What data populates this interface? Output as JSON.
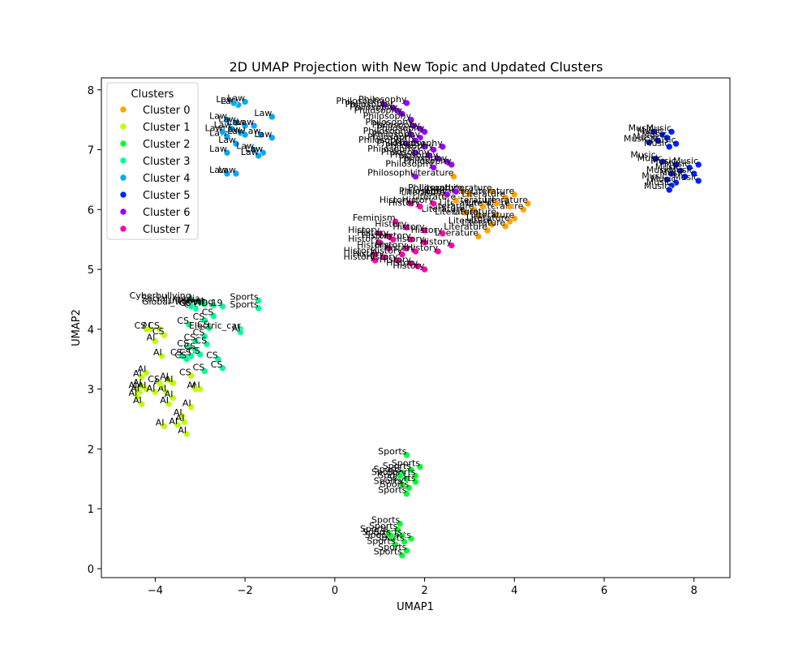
{
  "chart_data": {
    "type": "scatter",
    "title": "2D UMAP Projection with New Topic and Updated Clusters",
    "xlabel": "UMAP1",
    "ylabel": "UMAP2",
    "xlim": [
      -5.2,
      8.8
    ],
    "ylim": [
      -0.15,
      8.2
    ],
    "xticks": [
      -4,
      -2,
      0,
      2,
      4,
      6,
      8
    ],
    "yticks": [
      0,
      1,
      2,
      3,
      4,
      5,
      6,
      7,
      8
    ],
    "grid": false,
    "legend": {
      "title": "Clusters",
      "placement": "top-left"
    },
    "series": [
      {
        "name": "Cluster 0",
        "color": "#ffa500",
        "points": [
          [
            2.45,
            6.23,
            "Literature"
          ],
          [
            2.85,
            6.3,
            "Literature"
          ],
          [
            3.0,
            6.25,
            "Literature"
          ],
          [
            3.5,
            6.3,
            "Literature"
          ],
          [
            3.8,
            6.2,
            "Literature"
          ],
          [
            4.0,
            6.25,
            "Literature"
          ],
          [
            4.3,
            6.1,
            "Literature"
          ],
          [
            4.2,
            6.0,
            "Literature"
          ],
          [
            3.9,
            6.05,
            "Literature"
          ],
          [
            3.6,
            6.1,
            "Literature"
          ],
          [
            3.3,
            6.05,
            "Literature"
          ],
          [
            3.1,
            6.0,
            "Literature"
          ],
          [
            2.9,
            5.95,
            "Literature"
          ],
          [
            3.2,
            5.9,
            "Literature"
          ],
          [
            3.6,
            5.9,
            "Literature"
          ],
          [
            4.0,
            5.85,
            "Literature"
          ],
          [
            3.9,
            5.8,
            "Literature"
          ],
          [
            3.5,
            5.75,
            "Literature"
          ],
          [
            3.8,
            5.72,
            "Literature"
          ],
          [
            3.4,
            5.65,
            "Literature"
          ],
          [
            3.2,
            5.55,
            "Literature"
          ],
          [
            2.65,
            6.55,
            "Literature"
          ],
          [
            2.7,
            6.15,
            "Literature"
          ]
        ]
      },
      {
        "name": "Cluster 1",
        "color": "#bfff00",
        "points": [
          [
            -4.4,
            3.0,
            "AI"
          ],
          [
            -4.3,
            3.2,
            "AI"
          ],
          [
            -4.2,
            3.27,
            "AI"
          ],
          [
            -4.3,
            3.05,
            "AI"
          ],
          [
            -4.2,
            3.0,
            "AI"
          ],
          [
            -4.35,
            2.95,
            "AI"
          ],
          [
            -4.4,
            2.87,
            "AI"
          ],
          [
            -4.3,
            2.75,
            "AI"
          ],
          [
            -4.0,
            2.95,
            "AI"
          ],
          [
            -3.85,
            3.05,
            "AI"
          ],
          [
            -3.7,
            3.15,
            "AI"
          ],
          [
            -3.6,
            3.1,
            "AI"
          ],
          [
            -3.75,
            2.95,
            "AI"
          ],
          [
            -3.6,
            2.85,
            "AI"
          ],
          [
            -3.7,
            2.75,
            "AI"
          ],
          [
            -3.2,
            2.7,
            "AI"
          ],
          [
            -3.4,
            2.55,
            "AI"
          ],
          [
            -3.35,
            2.45,
            "AI"
          ],
          [
            -3.5,
            2.4,
            "AI"
          ],
          [
            -3.8,
            2.38,
            "AI"
          ],
          [
            -3.3,
            2.25,
            "AI"
          ],
          [
            -3.0,
            3.0,
            "AI"
          ],
          [
            -3.1,
            3.0,
            "AI"
          ],
          [
            -3.2,
            3.22,
            "CS"
          ],
          [
            -3.9,
            3.1,
            "CS"
          ],
          [
            -4.0,
            3.8,
            "AI"
          ],
          [
            -4.1,
            4.0,
            "AI"
          ],
          [
            -3.85,
            3.55,
            "AI"
          ],
          [
            -4.2,
            4.0,
            "CS"
          ],
          [
            -3.9,
            4.0,
            "CS"
          ],
          [
            -3.8,
            3.9,
            "CS"
          ]
        ]
      },
      {
        "name": "Cluster 2",
        "color": "#00ff33",
        "points": [
          [
            1.6,
            1.9,
            "Sports"
          ],
          [
            1.9,
            1.7,
            "Sports"
          ],
          [
            1.7,
            1.65,
            "Sports"
          ],
          [
            1.5,
            1.6,
            "Sports"
          ],
          [
            1.8,
            1.55,
            "Sports"
          ],
          [
            1.6,
            1.5,
            "Sports"
          ],
          [
            1.8,
            1.45,
            "Sports"
          ],
          [
            1.5,
            1.4,
            "Sports"
          ],
          [
            1.65,
            1.35,
            "Sports"
          ],
          [
            1.6,
            1.25,
            "Sports"
          ],
          [
            1.45,
            1.55,
            "Sports"
          ],
          [
            1.45,
            0.75,
            "Sports"
          ],
          [
            1.7,
            0.5,
            "Sports"
          ],
          [
            1.4,
            0.65,
            "Sports"
          ],
          [
            1.5,
            0.55,
            "Sports"
          ],
          [
            1.3,
            0.5,
            "Sports"
          ],
          [
            1.55,
            0.45,
            "Sports"
          ],
          [
            1.35,
            0.4,
            "Sports"
          ],
          [
            1.6,
            0.3,
            "Sports"
          ],
          [
            1.5,
            0.22,
            "Sports"
          ],
          [
            1.2,
            0.6,
            "Sports"
          ],
          [
            1.25,
            0.55,
            "Sports"
          ]
        ]
      },
      {
        "name": "Cluster 3",
        "color": "#00ff99",
        "points": [
          [
            -3.2,
            4.5,
            "Cyberbullying"
          ],
          [
            -3.0,
            4.45,
            "Social_media"
          ],
          [
            -2.9,
            4.42,
            "Internet"
          ],
          [
            -2.7,
            4.4,
            "Global_warming"
          ],
          [
            -2.5,
            4.38,
            "COVID-19"
          ],
          [
            -1.7,
            4.48,
            "Sports"
          ],
          [
            -1.7,
            4.35,
            "Sports"
          ],
          [
            -3.1,
            4.35,
            "CS"
          ],
          [
            -3.2,
            4.38,
            "CS"
          ],
          [
            -2.7,
            4.22,
            "CS"
          ],
          [
            -2.9,
            4.15,
            "CS"
          ],
          [
            -3.25,
            4.08,
            "CS"
          ],
          [
            -2.8,
            4.02,
            "CS"
          ],
          [
            -2.1,
            4.0,
            "Electric_car"
          ],
          [
            -2.1,
            3.95,
            "AI"
          ],
          [
            -2.9,
            3.88,
            "CS"
          ],
          [
            -3.1,
            3.8,
            "CS"
          ],
          [
            -2.85,
            3.75,
            "CS"
          ],
          [
            -3.25,
            3.7,
            "CS"
          ],
          [
            -3.1,
            3.65,
            "CS"
          ],
          [
            -3.0,
            3.58,
            "CS"
          ],
          [
            -3.2,
            3.55,
            "CS"
          ],
          [
            -2.6,
            3.5,
            "CS"
          ],
          [
            -2.5,
            3.35,
            "CS"
          ],
          [
            -2.9,
            3.3,
            "CS"
          ],
          [
            -3.4,
            3.55,
            "CS"
          ],
          [
            -3.3,
            3.5,
            "CS"
          ]
        ]
      },
      {
        "name": "Cluster 4",
        "color": "#00aaff",
        "points": [
          [
            -2.0,
            7.8,
            "Law"
          ],
          [
            -2.15,
            7.75,
            "Law"
          ],
          [
            -2.25,
            7.78,
            "Law"
          ],
          [
            -1.4,
            7.55,
            "Law"
          ],
          [
            -2.4,
            7.5,
            "Law"
          ],
          [
            -2.2,
            7.45,
            "Law"
          ],
          [
            -2.0,
            7.4,
            "Law"
          ],
          [
            -1.8,
            7.4,
            "Law"
          ],
          [
            -2.3,
            7.35,
            "Law"
          ],
          [
            -2.1,
            7.28,
            "Law"
          ],
          [
            -2.4,
            7.22,
            "Law"
          ],
          [
            -1.65,
            7.25,
            "Law"
          ],
          [
            -1.4,
            7.2,
            "Law"
          ],
          [
            -2.2,
            7.1,
            "Law"
          ],
          [
            -1.8,
            7.0,
            "Law"
          ],
          [
            -1.6,
            6.95,
            "Law"
          ],
          [
            -2.4,
            6.95,
            "Law"
          ],
          [
            -1.7,
            6.9,
            "Law"
          ],
          [
            -2.4,
            6.6,
            "Law"
          ],
          [
            -2.2,
            6.6,
            "Law"
          ],
          [
            -2.5,
            7.3,
            "Law"
          ],
          [
            -2.0,
            7.25,
            "Law"
          ]
        ]
      },
      {
        "name": "Cluster 5",
        "color": "#0022ff",
        "points": [
          [
            7.1,
            7.3,
            "Music"
          ],
          [
            7.3,
            7.25,
            "Music"
          ],
          [
            7.4,
            7.2,
            "Music"
          ],
          [
            7.5,
            7.3,
            "Music"
          ],
          [
            7.2,
            7.15,
            "Music"
          ],
          [
            7.0,
            7.12,
            "Music"
          ],
          [
            7.6,
            7.1,
            "Music"
          ],
          [
            7.45,
            7.05,
            "Music"
          ],
          [
            7.15,
            6.85,
            "Music"
          ],
          [
            7.3,
            6.8,
            "Music"
          ],
          [
            7.6,
            6.75,
            "Music"
          ],
          [
            7.9,
            6.7,
            "Music"
          ],
          [
            8.1,
            6.75,
            "Music"
          ],
          [
            7.7,
            6.65,
            "Music"
          ],
          [
            7.5,
            6.6,
            "Music"
          ],
          [
            7.8,
            6.55,
            "Music"
          ],
          [
            8.0,
            6.6,
            "Music"
          ],
          [
            7.4,
            6.5,
            "Music"
          ],
          [
            7.6,
            6.45,
            "Music"
          ],
          [
            8.1,
            6.48,
            "Music"
          ],
          [
            7.5,
            6.4,
            "Music"
          ],
          [
            7.45,
            6.33,
            "Music"
          ]
        ]
      },
      {
        "name": "Cluster 6",
        "color": "#9900ff",
        "points": [
          [
            1.1,
            7.75,
            "Philosophy"
          ],
          [
            1.6,
            7.78,
            "Philosophy"
          ],
          [
            1.3,
            7.7,
            "Philosophy"
          ],
          [
            1.4,
            7.65,
            "Philosophy"
          ],
          [
            1.5,
            7.6,
            "Philosophy"
          ],
          [
            1.7,
            7.5,
            "Philosophy"
          ],
          [
            1.75,
            7.4,
            "Philosophy"
          ],
          [
            1.9,
            7.35,
            "Philosophy"
          ],
          [
            2.0,
            7.3,
            "Philosophy"
          ],
          [
            1.7,
            7.25,
            "Philosophy"
          ],
          [
            1.9,
            7.2,
            "Philosophy"
          ],
          [
            1.8,
            7.15,
            "Philosophy"
          ],
          [
            1.6,
            7.1,
            "Philosophy"
          ],
          [
            2.0,
            7.05,
            "Philosophy"
          ],
          [
            2.2,
            7.0,
            "Philosophy"
          ],
          [
            2.4,
            7.05,
            "Philosophy"
          ],
          [
            1.8,
            6.95,
            "Philosophy"
          ],
          [
            2.1,
            6.9,
            "Philosophy"
          ],
          [
            2.3,
            6.85,
            "Philosophy"
          ],
          [
            2.5,
            6.8,
            "Philosophy"
          ],
          [
            2.6,
            6.75,
            "Philosophy"
          ],
          [
            2.2,
            6.7,
            "Philosophy"
          ],
          [
            1.8,
            6.55,
            "Philosophy"
          ],
          [
            2.7,
            6.3,
            "Philosophy"
          ],
          [
            2.5,
            6.25,
            "Philosophy"
          ]
        ]
      },
      {
        "name": "Cluster 7",
        "color": "#ff00aa",
        "points": [
          [
            1.35,
            5.8,
            "Feminism"
          ],
          [
            1.7,
            6.1,
            "History"
          ],
          [
            1.9,
            6.05,
            "History"
          ],
          [
            2.2,
            6.1,
            "History"
          ],
          [
            1.0,
            5.6,
            "History"
          ],
          [
            1.6,
            5.7,
            "History"
          ],
          [
            2.0,
            5.65,
            "History"
          ],
          [
            2.4,
            5.6,
            "History"
          ],
          [
            1.2,
            5.55,
            "History"
          ],
          [
            1.7,
            5.5,
            "History"
          ],
          [
            2.0,
            5.45,
            "History"
          ],
          [
            2.6,
            5.4,
            "History"
          ],
          [
            1.3,
            5.5,
            "History"
          ],
          [
            1.0,
            5.45,
            "History"
          ],
          [
            1.2,
            5.35,
            "History"
          ],
          [
            1.6,
            5.35,
            "History"
          ],
          [
            2.3,
            5.3,
            "History"
          ],
          [
            0.9,
            5.25,
            "History"
          ],
          [
            1.1,
            5.2,
            "History"
          ],
          [
            1.5,
            5.25,
            "History"
          ],
          [
            1.8,
            5.3,
            "History"
          ],
          [
            0.9,
            5.15,
            "History"
          ],
          [
            1.4,
            5.15,
            "History"
          ],
          [
            1.7,
            5.1,
            "History"
          ],
          [
            1.85,
            5.05,
            "History"
          ],
          [
            2.0,
            5.0,
            "History"
          ]
        ]
      }
    ]
  }
}
